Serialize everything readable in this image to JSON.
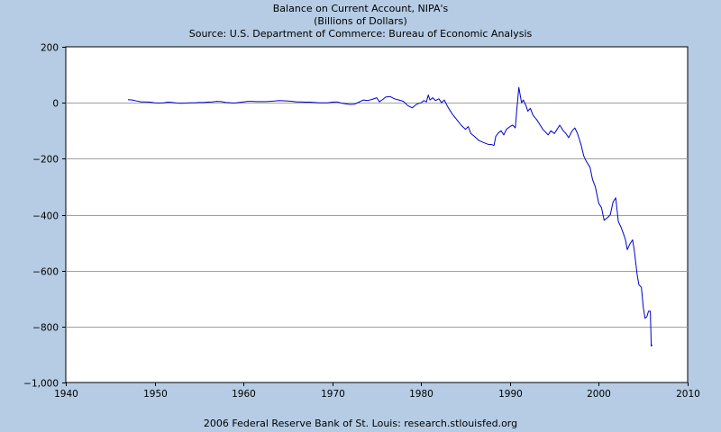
{
  "header": {
    "title": "Balance on Current Account, NIPA's",
    "subtitle": "(Billions of Dollars)",
    "source": "Source: U.S. Department of Commerce: Bureau of Economic Analysis"
  },
  "footer": {
    "text": "2006 Federal Reserve Bank of St. Louis: research.stlouisfed.org"
  },
  "colors": {
    "background": "#b5cce4",
    "plot_background": "#ffffff",
    "grid": "#a0a0a0",
    "line": "#0000cc"
  },
  "chart_data": {
    "type": "line",
    "title": "Balance on Current Account, NIPA's",
    "subtitle": "(Billions of Dollars)",
    "xlabel": "",
    "ylabel": "",
    "xlim": [
      1940,
      2010
    ],
    "ylim": [
      -1000,
      200
    ],
    "x_ticks": [
      1940,
      1950,
      1960,
      1970,
      1980,
      1990,
      2000,
      2010
    ],
    "y_ticks": [
      200,
      0,
      -200,
      -400,
      -600,
      -800,
      -1000
    ],
    "y_tick_labels": [
      "200",
      "0",
      "−200",
      "−400",
      "−600",
      "−800",
      "−1,000"
    ],
    "grid": "horizontal",
    "series": [
      {
        "name": "",
        "color": "#0000cc",
        "points": [
          [
            1947.0,
            11
          ],
          [
            1947.5,
            10
          ],
          [
            1948.0,
            6
          ],
          [
            1948.5,
            3
          ],
          [
            1949.0,
            3
          ],
          [
            1949.5,
            2
          ],
          [
            1950.0,
            0
          ],
          [
            1950.5,
            -1
          ],
          [
            1951.0,
            0
          ],
          [
            1951.5,
            2
          ],
          [
            1952.0,
            1
          ],
          [
            1952.5,
            -1
          ],
          [
            1953.0,
            -2
          ],
          [
            1953.5,
            -1
          ],
          [
            1954.0,
            0
          ],
          [
            1954.5,
            0
          ],
          [
            1955.0,
            1
          ],
          [
            1955.5,
            1
          ],
          [
            1956.0,
            2
          ],
          [
            1956.5,
            3
          ],
          [
            1957.0,
            5
          ],
          [
            1957.5,
            4
          ],
          [
            1958.0,
            1
          ],
          [
            1958.5,
            0
          ],
          [
            1959.0,
            -1
          ],
          [
            1959.5,
            1
          ],
          [
            1960.0,
            3
          ],
          [
            1960.5,
            5
          ],
          [
            1961.0,
            5
          ],
          [
            1961.5,
            4
          ],
          [
            1962.0,
            4
          ],
          [
            1962.5,
            4
          ],
          [
            1963.0,
            5
          ],
          [
            1963.5,
            6
          ],
          [
            1964.0,
            8
          ],
          [
            1964.5,
            7
          ],
          [
            1965.0,
            6
          ],
          [
            1965.5,
            5
          ],
          [
            1966.0,
            3
          ],
          [
            1966.5,
            3
          ],
          [
            1967.0,
            2
          ],
          [
            1967.5,
            2
          ],
          [
            1968.0,
            1
          ],
          [
            1968.5,
            0
          ],
          [
            1969.0,
            0
          ],
          [
            1969.5,
            0
          ],
          [
            1970.0,
            2
          ],
          [
            1970.5,
            3
          ],
          [
            1971.0,
            -1
          ],
          [
            1971.5,
            -4
          ],
          [
            1972.0,
            -6
          ],
          [
            1972.5,
            -5
          ],
          [
            1973.0,
            2
          ],
          [
            1973.5,
            10
          ],
          [
            1974.0,
            8
          ],
          [
            1974.5,
            12
          ],
          [
            1975.0,
            18
          ],
          [
            1975.3,
            3
          ],
          [
            1975.7,
            12
          ],
          [
            1976.0,
            20
          ],
          [
            1976.5,
            22
          ],
          [
            1977.0,
            14
          ],
          [
            1977.5,
            10
          ],
          [
            1978.0,
            5
          ],
          [
            1978.5,
            -10
          ],
          [
            1979.0,
            -18
          ],
          [
            1979.5,
            -5
          ],
          [
            1980.0,
            0
          ],
          [
            1980.3,
            8
          ],
          [
            1980.6,
            3
          ],
          [
            1980.8,
            28
          ],
          [
            1981.0,
            10
          ],
          [
            1981.3,
            18
          ],
          [
            1981.6,
            8
          ],
          [
            1982.0,
            14
          ],
          [
            1982.3,
            0
          ],
          [
            1982.6,
            10
          ],
          [
            1983.0,
            -15
          ],
          [
            1983.5,
            -40
          ],
          [
            1984.0,
            -60
          ],
          [
            1984.5,
            -80
          ],
          [
            1985.0,
            -95
          ],
          [
            1985.3,
            -85
          ],
          [
            1985.6,
            -110
          ],
          [
            1986.0,
            -120
          ],
          [
            1986.5,
            -135
          ],
          [
            1987.0,
            -142
          ],
          [
            1987.5,
            -148
          ],
          [
            1988.0,
            -150
          ],
          [
            1988.2,
            -153
          ],
          [
            1988.4,
            -120
          ],
          [
            1988.7,
            -108
          ],
          [
            1989.0,
            -100
          ],
          [
            1989.3,
            -115
          ],
          [
            1989.6,
            -95
          ],
          [
            1990.0,
            -85
          ],
          [
            1990.3,
            -80
          ],
          [
            1990.6,
            -90
          ],
          [
            1990.75,
            -30
          ],
          [
            1991.0,
            55
          ],
          [
            1991.3,
            0
          ],
          [
            1991.5,
            10
          ],
          [
            1991.8,
            -10
          ],
          [
            1992.0,
            -30
          ],
          [
            1992.3,
            -20
          ],
          [
            1992.6,
            -45
          ],
          [
            1993.0,
            -60
          ],
          [
            1993.3,
            -75
          ],
          [
            1993.7,
            -95
          ],
          [
            1994.0,
            -105
          ],
          [
            1994.3,
            -115
          ],
          [
            1994.6,
            -100
          ],
          [
            1995.0,
            -110
          ],
          [
            1995.3,
            -95
          ],
          [
            1995.6,
            -80
          ],
          [
            1996.0,
            -100
          ],
          [
            1996.3,
            -110
          ],
          [
            1996.6,
            -125
          ],
          [
            1997.0,
            -100
          ],
          [
            1997.3,
            -90
          ],
          [
            1997.6,
            -110
          ],
          [
            1998.0,
            -150
          ],
          [
            1998.3,
            -190
          ],
          [
            1998.6,
            -210
          ],
          [
            1999.0,
            -230
          ],
          [
            1999.3,
            -275
          ],
          [
            1999.6,
            -300
          ],
          [
            2000.0,
            -360
          ],
          [
            2000.3,
            -375
          ],
          [
            2000.6,
            -420
          ],
          [
            2001.0,
            -410
          ],
          [
            2001.3,
            -400
          ],
          [
            2001.6,
            -355
          ],
          [
            2001.9,
            -340
          ],
          [
            2002.2,
            -425
          ],
          [
            2002.5,
            -445
          ],
          [
            2002.8,
            -470
          ],
          [
            2003.0,
            -490
          ],
          [
            2003.2,
            -525
          ],
          [
            2003.5,
            -505
          ],
          [
            2003.8,
            -490
          ],
          [
            2004.0,
            -530
          ],
          [
            2004.3,
            -610
          ],
          [
            2004.5,
            -650
          ],
          [
            2004.8,
            -660
          ],
          [
            2005.0,
            -730
          ],
          [
            2005.2,
            -770
          ],
          [
            2005.4,
            -765
          ],
          [
            2005.6,
            -745
          ],
          [
            2005.8,
            -745
          ],
          [
            2005.9,
            -870
          ],
          [
            2006.0,
            -865
          ]
        ]
      }
    ]
  }
}
